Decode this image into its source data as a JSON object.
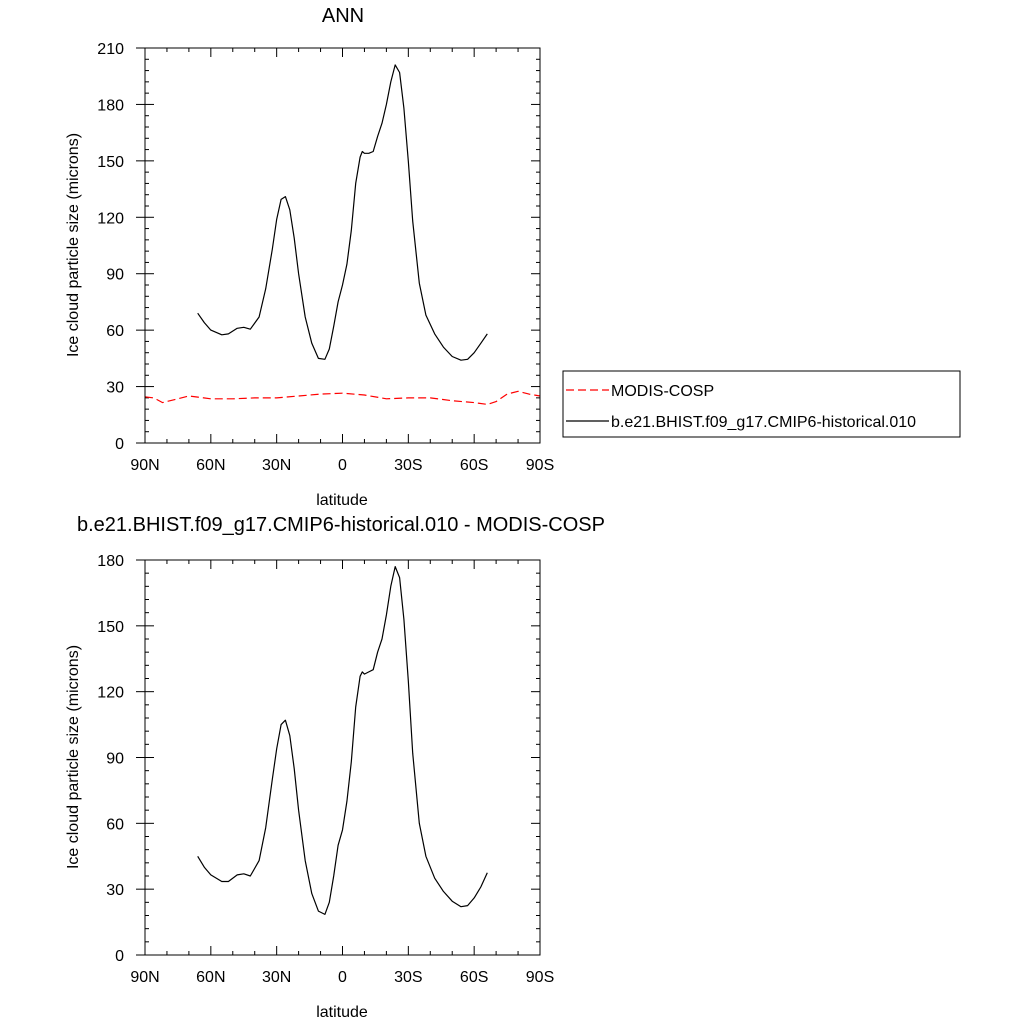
{
  "chart_data": [
    {
      "type": "line",
      "title": "ANN",
      "xlabel": "latitude",
      "ylabel": "Ice cloud particle size (microns)",
      "xlim": [
        90,
        -90
      ],
      "ylim": [
        0,
        210
      ],
      "x_ticks": [
        90,
        60,
        30,
        0,
        -30,
        -60,
        -90
      ],
      "x_tick_labels": [
        "90N",
        "60N",
        "30N",
        "0",
        "30S",
        "60S",
        "90S"
      ],
      "y_ticks": [
        0,
        30,
        60,
        90,
        120,
        150,
        180,
        210
      ],
      "y_tick_labels": [
        "0",
        "30",
        "60",
        "90",
        "120",
        "150",
        "180",
        "210"
      ],
      "grid": false,
      "legend_position": "right, outside plot",
      "series": [
        {
          "name": "MODIS-COSP",
          "color": "#ff0000",
          "style": "dashed",
          "x": [
            90,
            86,
            82,
            75,
            70,
            60,
            50,
            40,
            30,
            20,
            10,
            0,
            -10,
            -20,
            -30,
            -40,
            -50,
            -60,
            -66,
            -70,
            -75,
            -80,
            -85,
            -90
          ],
          "y": [
            24.5,
            24,
            21.5,
            23.5,
            25,
            23.5,
            23.5,
            24,
            24,
            25,
            26,
            26.5,
            25.5,
            23.5,
            24,
            24,
            22.5,
            21.5,
            20.5,
            22,
            26,
            27.5,
            26,
            25
          ]
        },
        {
          "name": "b.e21.BHIST.f09_g17.CMIP6-historical.010",
          "color": "#000000",
          "style": "solid",
          "x": [
            66,
            63,
            60,
            55,
            52,
            48,
            45,
            42,
            38,
            35,
            32,
            30,
            28,
            26,
            24,
            22,
            20,
            17,
            14,
            11,
            8,
            6,
            4,
            2,
            0,
            -2,
            -4,
            -6,
            -8,
            -9,
            -10,
            -12,
            -14,
            -16,
            -18,
            -20,
            -22,
            -24,
            -26,
            -28,
            -30,
            -32,
            -35,
            -38,
            -42,
            -46,
            -50,
            -54,
            -57,
            -60,
            -63,
            -66
          ],
          "y": [
            69,
            64,
            60,
            57.5,
            58,
            61,
            61.5,
            60.5,
            67,
            82,
            103,
            119,
            129.5,
            131,
            124,
            109,
            90,
            67,
            53,
            45,
            44.5,
            50,
            62,
            75,
            84,
            95,
            113,
            138,
            152,
            155,
            154,
            154,
            155,
            163,
            170,
            180,
            192,
            201,
            197,
            178,
            150,
            118,
            85,
            68,
            58,
            51,
            46,
            44,
            44.5,
            48,
            53,
            58
          ]
        }
      ]
    },
    {
      "type": "line",
      "title": "b.e21.BHIST.f09_g17.CMIP6-historical.010 - MODIS-COSP",
      "xlabel": "latitude",
      "ylabel": "Ice cloud particle size (microns)",
      "xlim": [
        90,
        -90
      ],
      "ylim": [
        0,
        180
      ],
      "x_ticks": [
        90,
        60,
        30,
        0,
        -30,
        -60,
        -90
      ],
      "x_tick_labels": [
        "90N",
        "60N",
        "30N",
        "0",
        "30S",
        "60S",
        "90S"
      ],
      "y_ticks": [
        0,
        30,
        60,
        90,
        120,
        150,
        180
      ],
      "y_tick_labels": [
        "0",
        "30",
        "60",
        "90",
        "120",
        "150",
        "180"
      ],
      "grid": false,
      "series": [
        {
          "color": "#000000",
          "style": "solid",
          "x": [
            66,
            63,
            60,
            55,
            52,
            48,
            45,
            42,
            38,
            35,
            32,
            30,
            28,
            26,
            24,
            22,
            20,
            17,
            14,
            11,
            8,
            6,
            4,
            2,
            0,
            -2,
            -4,
            -6,
            -8,
            -9,
            -10,
            -12,
            -14,
            -16,
            -18,
            -20,
            -22,
            -24,
            -26,
            -28,
            -30,
            -32,
            -35,
            -38,
            -42,
            -46,
            -50,
            -54,
            -57,
            -60,
            -63,
            -66
          ],
          "y": [
            45,
            40,
            36.5,
            33.5,
            33.5,
            36.5,
            37,
            36,
            43,
            58,
            80,
            94,
            105,
            107,
            100,
            85,
            66,
            43,
            28,
            20,
            18.5,
            24,
            36,
            50,
            57,
            70,
            88,
            113,
            127,
            129,
            128,
            129,
            130,
            138,
            144,
            155,
            168,
            177,
            172,
            153,
            125,
            92,
            60,
            45,
            35,
            29,
            24.5,
            22,
            22.5,
            26,
            31,
            37.5
          ]
        }
      ]
    }
  ],
  "legend": {
    "entries": [
      {
        "label": "MODIS-COSP",
        "color": "#ff0000",
        "style": "dashed"
      },
      {
        "label": "b.e21.BHIST.f09_g17.CMIP6-historical.010",
        "color": "#000000",
        "style": "solid"
      }
    ]
  }
}
